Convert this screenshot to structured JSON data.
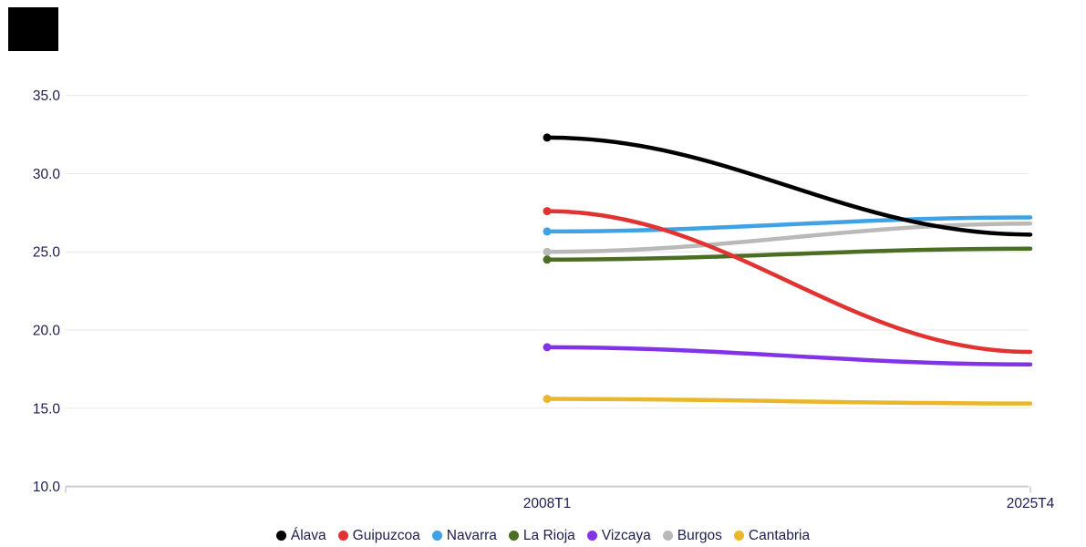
{
  "chart_data": {
    "type": "line",
    "title": "",
    "x_categories": [
      "2008T1",
      "2025T4"
    ],
    "y_ticks": [
      10.0,
      15.0,
      20.0,
      25.0,
      30.0,
      35.0
    ],
    "ylim": [
      10.0,
      36.6
    ],
    "grid": "horizontal",
    "legend_position": "bottom-center",
    "curve": "ease-in-out",
    "series": [
      {
        "name": "Álava",
        "color": "#000000",
        "values": [
          32.3,
          26.1
        ]
      },
      {
        "name": "Guipuzcoa",
        "color": "#e23333",
        "values": [
          27.6,
          18.6
        ]
      },
      {
        "name": "Navarra",
        "color": "#3fa2e4",
        "values": [
          26.3,
          27.2
        ]
      },
      {
        "name": "La Rioja",
        "color": "#4a6e22",
        "values": [
          24.5,
          25.2
        ]
      },
      {
        "name": "Vizcaya",
        "color": "#8233e8",
        "values": [
          18.9,
          17.8
        ]
      },
      {
        "name": "Burgos",
        "color": "#b9b9b9",
        "values": [
          25.0,
          26.8
        ]
      },
      {
        "name": "Cantabria",
        "color": "#eab62c",
        "values": [
          15.6,
          15.3
        ]
      }
    ]
  },
  "style": {
    "text_color": "#1d1d4f",
    "grid_color": "#e7e7e7",
    "axis_color": "#cccccc",
    "background": "#ffffff",
    "corner_box_color": "#000000"
  }
}
